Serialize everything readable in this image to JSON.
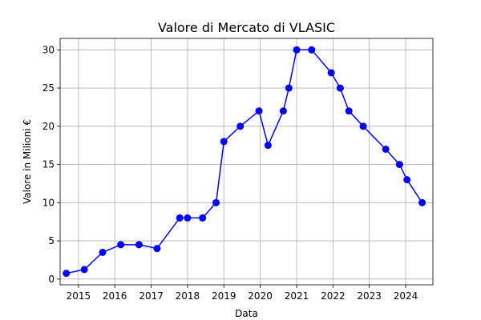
{
  "chart_data": {
    "type": "line",
    "title": "Valore di Mercato di VLASIC",
    "xlabel": "Data",
    "ylabel": "Valore in Milioni €",
    "xlim": [
      "2014-07-01",
      "2024-10-01"
    ],
    "ylim": [
      -0.75,
      31.5
    ],
    "grid": true,
    "x_ticks": [
      "2015",
      "2016",
      "2017",
      "2018",
      "2019",
      "2020",
      "2021",
      "2022",
      "2023",
      "2024"
    ],
    "y_ticks": [
      0,
      5,
      10,
      15,
      20,
      25,
      30
    ],
    "series": [
      {
        "color": "#0000ff",
        "marker": "circle",
        "points": [
          {
            "x": "2014-09-01",
            "y": 0.75
          },
          {
            "x": "2015-03-01",
            "y": 1.25
          },
          {
            "x": "2015-09-01",
            "y": 3.5
          },
          {
            "x": "2016-03-01",
            "y": 4.5
          },
          {
            "x": "2016-09-01",
            "y": 4.5
          },
          {
            "x": "2017-03-01",
            "y": 4.0
          },
          {
            "x": "2017-10-15",
            "y": 8.0
          },
          {
            "x": "2018-01-01",
            "y": 8.0
          },
          {
            "x": "2018-06-01",
            "y": 8.0
          },
          {
            "x": "2018-10-15",
            "y": 10.0
          },
          {
            "x": "2019-01-01",
            "y": 18.0
          },
          {
            "x": "2019-06-15",
            "y": 20.0
          },
          {
            "x": "2019-12-20",
            "y": 22.0
          },
          {
            "x": "2020-03-20",
            "y": 17.5
          },
          {
            "x": "2020-08-20",
            "y": 22.0
          },
          {
            "x": "2020-10-15",
            "y": 25.0
          },
          {
            "x": "2021-01-01",
            "y": 30.0
          },
          {
            "x": "2021-06-01",
            "y": 30.0
          },
          {
            "x": "2021-12-15",
            "y": 27.0
          },
          {
            "x": "2022-03-15",
            "y": 25.0
          },
          {
            "x": "2022-06-10",
            "y": 22.0
          },
          {
            "x": "2022-11-01",
            "y": 20.0
          },
          {
            "x": "2023-06-15",
            "y": 17.0
          },
          {
            "x": "2023-11-01",
            "y": 15.0
          },
          {
            "x": "2024-01-15",
            "y": 13.0
          },
          {
            "x": "2024-06-15",
            "y": 10.0
          }
        ]
      }
    ]
  }
}
